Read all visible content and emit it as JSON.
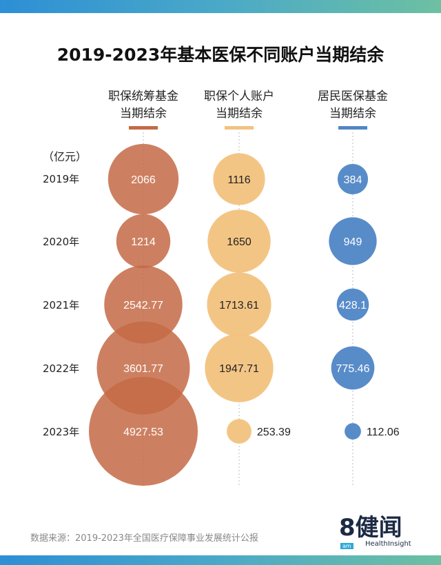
{
  "title": "2019-2023年基本医保不同账户当期结余",
  "unit_label": "（亿元）",
  "source": "数据来源：2019-2023年全国医疗保障事业发展统计公报",
  "logo": {
    "mark": "8健闻",
    "sub": "HealthInsight",
    "badge": "am"
  },
  "chart_data": {
    "type": "bubble",
    "title": "2019-2023年基本医保不同账户当期结余",
    "unit": "（亿元）",
    "categories": [
      "2019年",
      "2020年",
      "2021年",
      "2022年",
      "2023年"
    ],
    "series": [
      {
        "name": "职保统筹基金\n当期结余",
        "name_lines": [
          "职保统筹基金",
          "当期结余"
        ],
        "color": "#c46a45",
        "values": [
          2066,
          1214,
          2542.77,
          3601.77,
          4927.53
        ],
        "labels": [
          "2066",
          "1214",
          "2542.77",
          "3601.77",
          "4927.53"
        ]
      },
      {
        "name": "职保个人账户\n当期结余",
        "name_lines": [
          "职保个人账户",
          "当期结余"
        ],
        "color": "#f2c27e",
        "values": [
          1116,
          1650,
          1713.61,
          1947.71,
          253.39
        ],
        "labels": [
          "1116",
          "1650",
          "1713.61",
          "1947.71",
          "253.39"
        ]
      },
      {
        "name": "居民医保基金\n当期结余",
        "name_lines": [
          "居民医保基金",
          "当期结余"
        ],
        "color": "#4f86c6",
        "values": [
          384,
          949,
          428.1,
          775.46,
          112.06
        ],
        "labels": [
          "384",
          "949",
          "428.1",
          "775.46",
          "112.06"
        ]
      }
    ]
  }
}
